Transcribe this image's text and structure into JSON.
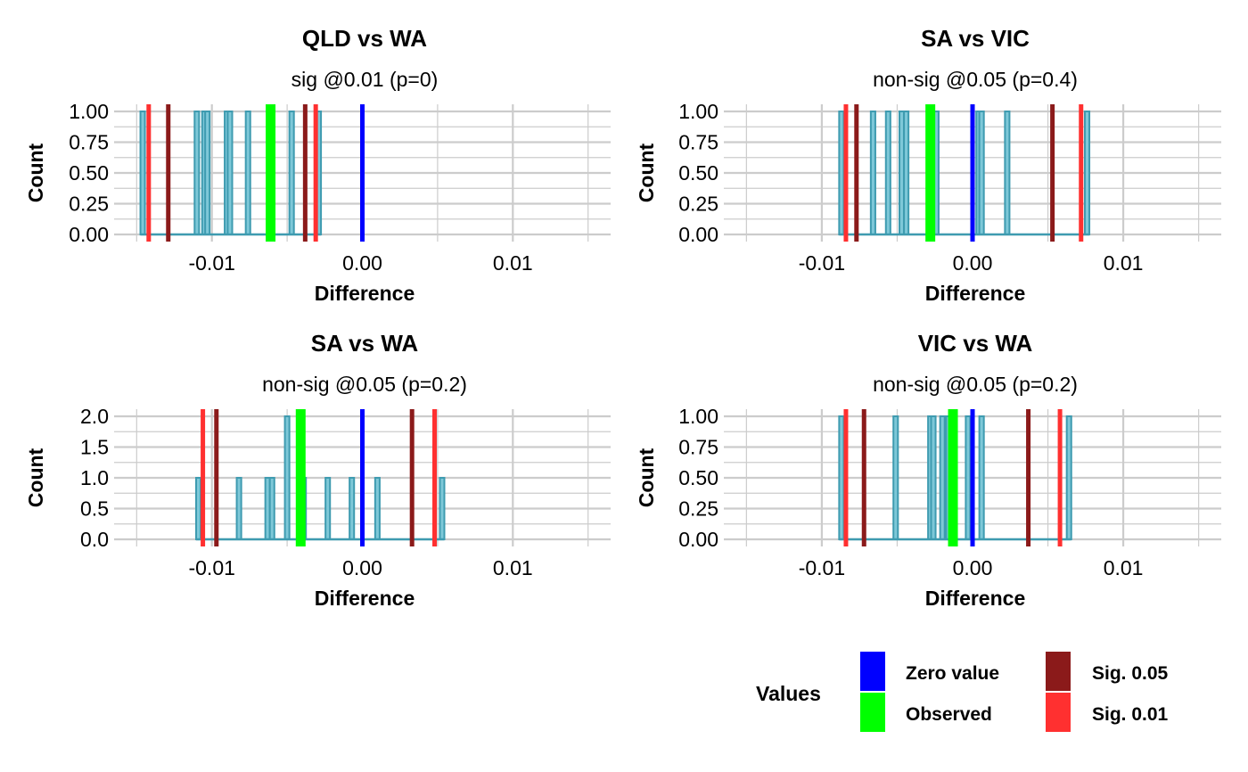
{
  "colors": {
    "zero": "#0000FF",
    "observed": "#00FF00",
    "sig05": "#8B1A1A",
    "sig01": "#FF3030",
    "bar_fill": "#7EC8D8",
    "bar_stroke": "#3E9BB0",
    "grid": "#CCCCCC"
  },
  "legend": {
    "title": "Values",
    "items": [
      {
        "key": "zero",
        "label": "Zero value"
      },
      {
        "key": "observed",
        "label": "Observed"
      },
      {
        "key": "sig05",
        "label": "Sig.  0.05"
      },
      {
        "key": "sig01",
        "label": "Sig.  0.01"
      }
    ]
  },
  "chart_data": [
    {
      "type": "bar",
      "title": "QLD vs WA",
      "subtitle": "sig @0.01 (p=0)",
      "xlabel": "Difference",
      "ylabel": "Count",
      "xlim": [
        -0.0165,
        0.0165
      ],
      "xticks": [
        -0.01,
        0.0,
        0.01
      ],
      "xtick_labels": [
        "-0.01",
        "0.00",
        "0.01"
      ],
      "ylim": [
        0,
        1
      ],
      "yticks": [
        0,
        0.25,
        0.5,
        0.75,
        1.0
      ],
      "ytick_labels": [
        "0.00",
        "0.25",
        "0.50",
        "0.75",
        "1.00"
      ],
      "bin_width": 0.0003,
      "bars": [
        {
          "x": -0.0146,
          "count": 1
        },
        {
          "x": -0.011,
          "count": 1
        },
        {
          "x": -0.0105,
          "count": 1
        },
        {
          "x": -0.0103,
          "count": 1
        },
        {
          "x": -0.009,
          "count": 1
        },
        {
          "x": -0.0088,
          "count": 1
        },
        {
          "x": -0.0076,
          "count": 1
        },
        {
          "x": -0.0061,
          "count": 1
        },
        {
          "x": -0.0047,
          "count": 1
        },
        {
          "x": -0.0029,
          "count": 1
        }
      ],
      "lines": {
        "zero": 0.0,
        "observed": -0.0061,
        "sig05": [
          -0.0129,
          -0.0038
        ],
        "sig01": [
          -0.0142,
          -0.0031
        ]
      }
    },
    {
      "type": "bar",
      "title": "SA vs VIC",
      "subtitle": "non-sig @0.05 (p=0.4)",
      "xlabel": "Difference",
      "ylabel": "Count",
      "xlim": [
        -0.0165,
        0.0165
      ],
      "xticks": [
        -0.01,
        0.0,
        0.01
      ],
      "xtick_labels": [
        "-0.01",
        "0.00",
        "0.01"
      ],
      "ylim": [
        0,
        1
      ],
      "yticks": [
        0,
        0.25,
        0.5,
        0.75,
        1.0
      ],
      "ytick_labels": [
        "0.00",
        "0.25",
        "0.50",
        "0.75",
        "1.00"
      ],
      "bin_width": 0.0003,
      "bars": [
        {
          "x": -0.0087,
          "count": 1
        },
        {
          "x": -0.0066,
          "count": 1
        },
        {
          "x": -0.0056,
          "count": 1
        },
        {
          "x": -0.0047,
          "count": 1
        },
        {
          "x": -0.0044,
          "count": 1
        },
        {
          "x": -0.0024,
          "count": 1
        },
        {
          "x": 0.0004,
          "count": 1
        },
        {
          "x": 0.0006,
          "count": 1
        },
        {
          "x": 0.0023,
          "count": 1
        },
        {
          "x": 0.0076,
          "count": 1
        }
      ],
      "lines": {
        "zero": 0.0,
        "observed": -0.0028,
        "sig05": [
          -0.0077,
          0.0053
        ],
        "sig01": [
          -0.0084,
          0.0072
        ]
      }
    },
    {
      "type": "bar",
      "title": "SA vs WA",
      "subtitle": "non-sig @0.05 (p=0.2)",
      "xlabel": "Difference",
      "ylabel": "Count",
      "xlim": [
        -0.0165,
        0.0165
      ],
      "xticks": [
        -0.01,
        0.0,
        0.01
      ],
      "xtick_labels": [
        "-0.01",
        "0.00",
        "0.01"
      ],
      "ylim": [
        0,
        2
      ],
      "yticks": [
        0,
        0.5,
        1.0,
        1.5,
        2.0
      ],
      "ytick_labels": [
        "0.0",
        "0.5",
        "1.0",
        "1.5",
        "2.0"
      ],
      "bin_width": 0.0003,
      "bars": [
        {
          "x": -0.0109,
          "count": 1
        },
        {
          "x": -0.0082,
          "count": 1
        },
        {
          "x": -0.0063,
          "count": 1
        },
        {
          "x": -0.006,
          "count": 1
        },
        {
          "x": -0.005,
          "count": 2
        },
        {
          "x": -0.0039,
          "count": 1
        },
        {
          "x": -0.0023,
          "count": 1
        },
        {
          "x": -0.0007,
          "count": 1
        },
        {
          "x": 0.001,
          "count": 1
        },
        {
          "x": 0.0053,
          "count": 1
        }
      ],
      "lines": {
        "zero": 0.0,
        "observed": -0.0041,
        "sig05": [
          -0.0097,
          0.0033
        ],
        "sig01": [
          -0.0106,
          0.0048
        ]
      }
    },
    {
      "type": "bar",
      "title": "VIC vs WA",
      "subtitle": "non-sig @0.05 (p=0.2)",
      "xlabel": "Difference",
      "ylabel": "Count",
      "xlim": [
        -0.0165,
        0.0165
      ],
      "xticks": [
        -0.01,
        0.0,
        0.01
      ],
      "xtick_labels": [
        "-0.01",
        "0.00",
        "0.01"
      ],
      "ylim": [
        0,
        1
      ],
      "yticks": [
        0,
        0.25,
        0.5,
        0.75,
        1.0
      ],
      "ytick_labels": [
        "0.00",
        "0.25",
        "0.50",
        "0.75",
        "1.00"
      ],
      "bin_width": 0.0003,
      "bars": [
        {
          "x": -0.0087,
          "count": 1
        },
        {
          "x": -0.0051,
          "count": 1
        },
        {
          "x": -0.0028,
          "count": 1
        },
        {
          "x": -0.0026,
          "count": 1
        },
        {
          "x": -0.002,
          "count": 1
        },
        {
          "x": -0.0016,
          "count": 1
        },
        {
          "x": -0.0013,
          "count": 1
        },
        {
          "x": -0.0003,
          "count": 1
        },
        {
          "x": 0.0006,
          "count": 1
        },
        {
          "x": 0.0064,
          "count": 1
        }
      ],
      "lines": {
        "zero": 0.0,
        "observed": -0.0013,
        "sig05": [
          -0.0072,
          0.0037
        ],
        "sig01": [
          -0.0084,
          0.0058
        ]
      }
    }
  ]
}
